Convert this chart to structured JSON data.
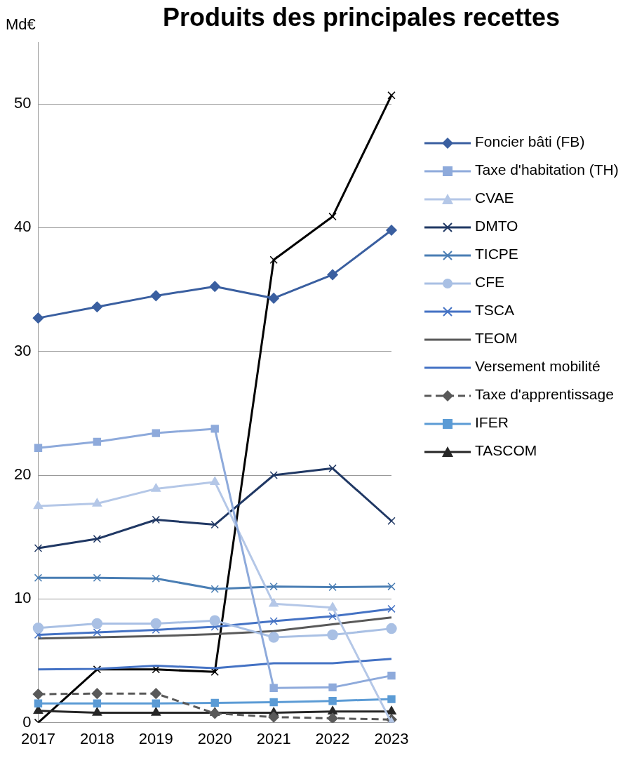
{
  "chart_data": {
    "type": "line",
    "title": "Produits des principales recettes",
    "ylabel": "Md€",
    "categories": [
      "2017",
      "2018",
      "2019",
      "2020",
      "2021",
      "2022",
      "2023"
    ],
    "ylim": [
      0,
      55
    ],
    "yticks": [
      0,
      10,
      20,
      30,
      40,
      50
    ],
    "grid": "y",
    "legend": "right",
    "series": [
      {
        "name": "Foncier bâti (FB)",
        "color": "#3a5fa0",
        "marker": "diamond",
        "values": [
          32.7,
          33.6,
          34.5,
          35.25,
          34.3,
          36.2,
          39.8
        ]
      },
      {
        "name": "Taxe d'habitation (TH)",
        "color": "#8eaadb",
        "marker": "square",
        "values": [
          22.2,
          22.7,
          23.4,
          23.75,
          2.8,
          2.85,
          3.8
        ]
      },
      {
        "name": "CVAE",
        "color": "#b4c7e7",
        "marker": "triangle",
        "values": [
          17.5,
          17.7,
          18.9,
          19.45,
          9.6,
          9.3,
          0
        ]
      },
      {
        "name": "DMTO",
        "color": "#203864",
        "marker": "cross",
        "values": [
          14.1,
          14.85,
          16.4,
          16.0,
          20.0,
          20.55,
          16.3
        ]
      },
      {
        "name": "TICPE",
        "color": "#4a7eb4",
        "marker": "cross",
        "values": [
          11.7,
          11.7,
          11.65,
          10.8,
          11.0,
          10.95,
          11.0
        ]
      },
      {
        "name": "CFE",
        "color": "#a9c0e4",
        "marker": "circle",
        "values": [
          7.65,
          8.0,
          8.0,
          8.25,
          6.9,
          7.1,
          7.6
        ]
      },
      {
        "name": "TSCA",
        "color": "#4472c4",
        "marker": "cross",
        "values": [
          7.1,
          7.3,
          7.5,
          7.75,
          8.2,
          8.6,
          9.2
        ]
      },
      {
        "name": "TEOM",
        "color": "#595959",
        "marker": "none",
        "values": [
          6.8,
          6.9,
          7.0,
          7.15,
          7.4,
          7.95,
          8.5
        ]
      },
      {
        "name": "Versement mobilité",
        "color": "#4472c4",
        "marker": "none",
        "values": [
          4.3,
          4.35,
          4.6,
          4.4,
          4.8,
          4.8,
          5.15
        ]
      },
      {
        "name": "Taxe d'apprentissage",
        "color": "#595959",
        "marker": "diamond",
        "line_style": "dashed",
        "values": [
          2.3,
          2.35,
          2.35,
          0.75,
          0.45,
          0.35,
          0.25
        ]
      },
      {
        "name": "IFER",
        "color": "#5b9bd5",
        "marker": "square",
        "values": [
          1.55,
          1.55,
          1.55,
          1.6,
          1.65,
          1.75,
          1.9
        ]
      },
      {
        "name": "TASCOM",
        "color": "#262626",
        "marker": "triangle",
        "values": [
          0.95,
          0.8,
          0.8,
          0.8,
          0.8,
          0.9,
          0.9
        ]
      },
      {
        "color": "#000000",
        "marker": "cross",
        "values": [
          0,
          4.3,
          4.3,
          4.1,
          37.4,
          40.9,
          50.7
        ]
      }
    ]
  }
}
